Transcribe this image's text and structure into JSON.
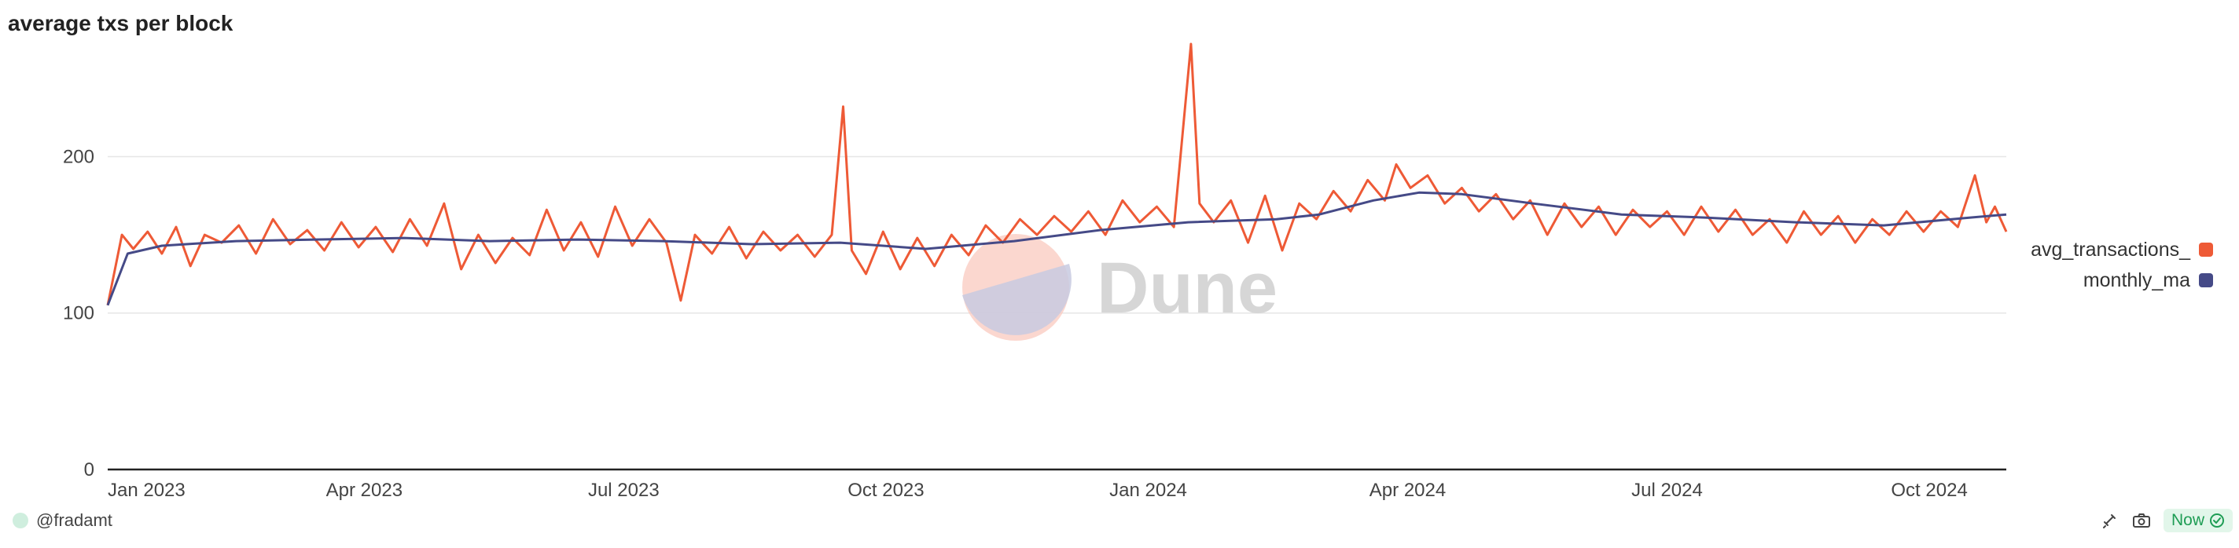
{
  "chart_data": {
    "type": "line",
    "title": "average txs per block",
    "x_ticks": [
      "Jan 2023",
      "Apr 2023",
      "Jul 2023",
      "Oct 2023",
      "Jan 2024",
      "Apr 2024",
      "Jul 2024",
      "Oct 2024"
    ],
    "y_ticks": [
      0,
      100,
      200
    ],
    "ylim": [
      0,
      275
    ],
    "xlim": [
      "2023-01-01",
      "2024-10-28"
    ],
    "grid": true,
    "legend_position": "right",
    "series": [
      {
        "name": "avg_transactions_",
        "color": "#ee5a36",
        "points": [
          [
            "2023-01-01",
            105
          ],
          [
            "2023-01-06",
            150
          ],
          [
            "2023-01-10",
            141
          ],
          [
            "2023-01-15",
            152
          ],
          [
            "2023-01-20",
            138
          ],
          [
            "2023-01-25",
            155
          ],
          [
            "2023-01-30",
            130
          ],
          [
            "2023-02-04",
            150
          ],
          [
            "2023-02-10",
            145
          ],
          [
            "2023-02-16",
            156
          ],
          [
            "2023-02-22",
            138
          ],
          [
            "2023-02-28",
            160
          ],
          [
            "2023-03-06",
            144
          ],
          [
            "2023-03-12",
            153
          ],
          [
            "2023-03-18",
            140
          ],
          [
            "2023-03-24",
            158
          ],
          [
            "2023-03-30",
            142
          ],
          [
            "2023-04-05",
            155
          ],
          [
            "2023-04-11",
            139
          ],
          [
            "2023-04-17",
            160
          ],
          [
            "2023-04-23",
            143
          ],
          [
            "2023-04-29",
            170
          ],
          [
            "2023-05-05",
            128
          ],
          [
            "2023-05-11",
            150
          ],
          [
            "2023-05-17",
            132
          ],
          [
            "2023-05-23",
            148
          ],
          [
            "2023-05-29",
            137
          ],
          [
            "2023-06-04",
            166
          ],
          [
            "2023-06-10",
            140
          ],
          [
            "2023-06-16",
            158
          ],
          [
            "2023-06-22",
            136
          ],
          [
            "2023-06-28",
            168
          ],
          [
            "2023-07-04",
            143
          ],
          [
            "2023-07-10",
            160
          ],
          [
            "2023-07-16",
            145
          ],
          [
            "2023-07-21",
            108
          ],
          [
            "2023-07-26",
            150
          ],
          [
            "2023-08-01",
            138
          ],
          [
            "2023-08-07",
            155
          ],
          [
            "2023-08-13",
            135
          ],
          [
            "2023-08-19",
            152
          ],
          [
            "2023-08-25",
            140
          ],
          [
            "2023-08-31",
            150
          ],
          [
            "2023-09-06",
            136
          ],
          [
            "2023-09-12",
            150
          ],
          [
            "2023-09-16",
            232
          ],
          [
            "2023-09-19",
            140
          ],
          [
            "2023-09-24",
            125
          ],
          [
            "2023-09-30",
            152
          ],
          [
            "2023-10-06",
            128
          ],
          [
            "2023-10-12",
            148
          ],
          [
            "2023-10-18",
            130
          ],
          [
            "2023-10-24",
            150
          ],
          [
            "2023-10-30",
            137
          ],
          [
            "2023-11-05",
            156
          ],
          [
            "2023-11-11",
            145
          ],
          [
            "2023-11-17",
            160
          ],
          [
            "2023-11-23",
            150
          ],
          [
            "2023-11-29",
            162
          ],
          [
            "2023-12-05",
            152
          ],
          [
            "2023-12-11",
            165
          ],
          [
            "2023-12-17",
            150
          ],
          [
            "2023-12-23",
            172
          ],
          [
            "2023-12-29",
            158
          ],
          [
            "2024-01-04",
            168
          ],
          [
            "2024-01-10",
            155
          ],
          [
            "2024-01-16",
            272
          ],
          [
            "2024-01-19",
            170
          ],
          [
            "2024-01-24",
            158
          ],
          [
            "2024-01-30",
            172
          ],
          [
            "2024-02-05",
            145
          ],
          [
            "2024-02-11",
            175
          ],
          [
            "2024-02-17",
            140
          ],
          [
            "2024-02-23",
            170
          ],
          [
            "2024-02-29",
            160
          ],
          [
            "2024-03-06",
            178
          ],
          [
            "2024-03-12",
            165
          ],
          [
            "2024-03-18",
            185
          ],
          [
            "2024-03-24",
            172
          ],
          [
            "2024-03-28",
            195
          ],
          [
            "2024-04-02",
            180
          ],
          [
            "2024-04-08",
            188
          ],
          [
            "2024-04-14",
            170
          ],
          [
            "2024-04-20",
            180
          ],
          [
            "2024-04-26",
            165
          ],
          [
            "2024-05-02",
            176
          ],
          [
            "2024-05-08",
            160
          ],
          [
            "2024-05-14",
            172
          ],
          [
            "2024-05-20",
            150
          ],
          [
            "2024-05-26",
            170
          ],
          [
            "2024-06-01",
            155
          ],
          [
            "2024-06-07",
            168
          ],
          [
            "2024-06-13",
            150
          ],
          [
            "2024-06-19",
            166
          ],
          [
            "2024-06-25",
            155
          ],
          [
            "2024-07-01",
            165
          ],
          [
            "2024-07-07",
            150
          ],
          [
            "2024-07-13",
            168
          ],
          [
            "2024-07-19",
            152
          ],
          [
            "2024-07-25",
            166
          ],
          [
            "2024-07-31",
            150
          ],
          [
            "2024-08-06",
            160
          ],
          [
            "2024-08-12",
            145
          ],
          [
            "2024-08-18",
            165
          ],
          [
            "2024-08-24",
            150
          ],
          [
            "2024-08-30",
            162
          ],
          [
            "2024-09-05",
            145
          ],
          [
            "2024-09-11",
            160
          ],
          [
            "2024-09-17",
            150
          ],
          [
            "2024-09-23",
            165
          ],
          [
            "2024-09-29",
            152
          ],
          [
            "2024-10-05",
            165
          ],
          [
            "2024-10-11",
            155
          ],
          [
            "2024-10-17",
            188
          ],
          [
            "2024-10-21",
            158
          ],
          [
            "2024-10-24",
            168
          ],
          [
            "2024-10-28",
            152
          ]
        ]
      },
      {
        "name": "monthly_ma",
        "color": "#454a87",
        "points": [
          [
            "2023-01-01",
            105
          ],
          [
            "2023-01-08",
            138
          ],
          [
            "2023-01-20",
            143
          ],
          [
            "2023-02-15",
            146
          ],
          [
            "2023-03-15",
            147
          ],
          [
            "2023-04-15",
            148
          ],
          [
            "2023-05-15",
            146
          ],
          [
            "2023-06-15",
            147
          ],
          [
            "2023-07-15",
            146
          ],
          [
            "2023-08-15",
            144
          ],
          [
            "2023-09-15",
            145
          ],
          [
            "2023-10-15",
            141
          ],
          [
            "2023-11-15",
            146
          ],
          [
            "2023-12-15",
            153
          ],
          [
            "2024-01-15",
            158
          ],
          [
            "2024-02-15",
            160
          ],
          [
            "2024-03-01",
            163
          ],
          [
            "2024-03-20",
            172
          ],
          [
            "2024-04-05",
            177
          ],
          [
            "2024-04-20",
            176
          ],
          [
            "2024-05-15",
            170
          ],
          [
            "2024-06-15",
            163
          ],
          [
            "2024-07-15",
            161
          ],
          [
            "2024-08-15",
            158
          ],
          [
            "2024-09-15",
            156
          ],
          [
            "2024-10-15",
            161
          ],
          [
            "2024-10-28",
            163
          ]
        ]
      }
    ]
  },
  "watermark": {
    "text": "Dune",
    "accent": "#f9c9bf"
  },
  "footer": {
    "author": "@fradamt",
    "status": "Now"
  },
  "colors": {
    "grid": "#e6e6e6",
    "axis": "#222222",
    "tick_text": "#444444",
    "status_green": "#1f9d55"
  }
}
